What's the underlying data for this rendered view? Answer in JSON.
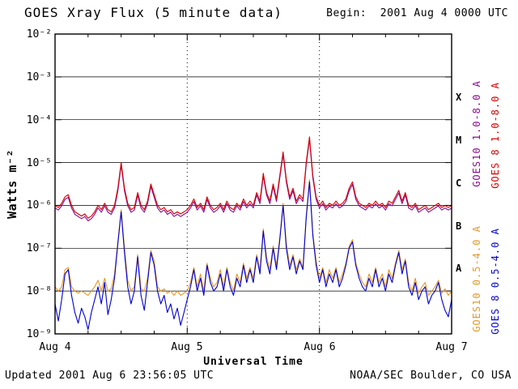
{
  "header": {
    "title": "GOES Xray Flux (5 minute data)",
    "begin": "Begin:  2001 Aug 4 0000 UTC"
  },
  "footer": {
    "updated": "Updated 2001 Aug  6 23:56:05 UTC",
    "source": "NOAA/SEC Boulder, CO USA"
  },
  "axes": {
    "y_title": "Watts m⁻²",
    "x_title": "Universal Time",
    "y_ticks": [
      "10⁻²",
      "10⁻³",
      "10⁻⁴",
      "10⁻⁵",
      "10⁻⁶",
      "10⁻⁷",
      "10⁻⁸",
      "10⁻⁹"
    ],
    "x_ticks": [
      "Aug 4",
      "Aug 5",
      "Aug 6",
      "Aug 7"
    ],
    "flare_classes": [
      "X",
      "M",
      "C",
      "B",
      "A"
    ]
  },
  "legend": {
    "goes10_long": {
      "label": "GOES10 1.0-8.0 A",
      "color": "#8a0d8f"
    },
    "goes8_long": {
      "label": "GOES 8 1.0-8.0 A",
      "color": "#d60000"
    },
    "goes10_short": {
      "label": "GOES10 0.5-4.0 A",
      "color": "#e2992c"
    },
    "goes8_short": {
      "label": "GOES 8 0.5-4.0 A",
      "color": "#0000d0"
    }
  },
  "chart_data": {
    "type": "line",
    "title": "GOES Xray Flux (5 minute data)",
    "xlabel": "Universal Time",
    "ylabel": "Watts m⁻²",
    "x_tick_labels": [
      "Aug 4",
      "Aug 5",
      "Aug 6",
      "Aug 7"
    ],
    "y_log_range": [
      -9,
      -2
    ],
    "duration_days": 3,
    "t0": 0,
    "dt": 0.025,
    "grid": "horizontal decade lines, dotted vertical day boundaries",
    "flare_class_bands": {
      "A": [
        -8,
        -7
      ],
      "B": [
        -7,
        -6
      ],
      "C": [
        -6,
        -5
      ],
      "M": [
        -5,
        -4
      ],
      "X": [
        -4,
        -3
      ]
    },
    "series": [
      {
        "id": "goes10-long",
        "name": "GOES10 1.0-8.0 A",
        "color": "#8a0d8f",
        "log10_values": [
          -6.06,
          -6.11,
          -6.01,
          -5.86,
          -5.81,
          -6.06,
          -6.21,
          -6.26,
          -6.31,
          -6.26,
          -6.36,
          -6.31,
          -6.21,
          -6.06,
          -6.16,
          -6.01,
          -6.16,
          -6.21,
          -6.06,
          -5.66,
          -5.06,
          -5.66,
          -6.01,
          -6.16,
          -6.11,
          -5.76,
          -6.06,
          -6.16,
          -5.96,
          -5.56,
          -5.81,
          -6.06,
          -6.16,
          -6.11,
          -6.21,
          -6.16,
          -6.26,
          -6.21,
          -6.26,
          -6.21,
          -6.16,
          -6.06,
          -5.91,
          -6.11,
          -6.01,
          -6.16,
          -5.86,
          -6.06,
          -6.16,
          -6.11,
          -6.01,
          -6.16,
          -5.96,
          -6.11,
          -6.16,
          -6.01,
          -6.11,
          -5.91,
          -6.06,
          -5.96,
          -6.06,
          -5.76,
          -5.96,
          -5.31,
          -5.76,
          -5.96,
          -5.56,
          -5.91,
          -5.36,
          -4.81,
          -5.46,
          -5.86,
          -5.66,
          -5.96,
          -5.81,
          -5.91,
          -5.06,
          -4.46,
          -5.36,
          -5.86,
          -6.06,
          -5.96,
          -6.11,
          -6.01,
          -6.06,
          -5.96,
          -6.06,
          -6.01,
          -5.91,
          -5.66,
          -5.51,
          -5.86,
          -6.01,
          -6.06,
          -6.11,
          -6.01,
          -6.06,
          -5.96,
          -6.06,
          -6.01,
          -6.11,
          -5.96,
          -6.01,
          -5.86,
          -5.71,
          -5.96,
          -5.76,
          -6.06,
          -6.11,
          -6.01,
          -6.16,
          -6.11,
          -6.06,
          -6.16,
          -6.11,
          -6.06,
          -6.01,
          -6.11,
          -6.06,
          -6.11,
          -6.06
        ]
      },
      {
        "id": "goes10-short",
        "name": "GOES10 0.5-4.0 A",
        "color": "#e2992c",
        "log10_values": [
          -7.9,
          -8.0,
          -7.9,
          -7.5,
          -7.45,
          -7.9,
          -8.0,
          -8.05,
          -8.0,
          -8.05,
          -8.1,
          -8.0,
          -7.9,
          -7.75,
          -8.0,
          -7.7,
          -8.0,
          -7.95,
          -7.6,
          -6.85,
          -6.1,
          -7.0,
          -7.75,
          -8.0,
          -7.9,
          -7.15,
          -7.95,
          -8.0,
          -7.7,
          -7.05,
          -7.3,
          -7.9,
          -8.0,
          -7.95,
          -8.05,
          -8.0,
          -8.1,
          -8.0,
          -8.1,
          -8.05,
          -8.0,
          -7.8,
          -7.45,
          -7.9,
          -7.6,
          -8.0,
          -7.35,
          -7.7,
          -7.9,
          -7.8,
          -7.5,
          -7.9,
          -7.45,
          -7.8,
          -8.0,
          -7.6,
          -7.8,
          -7.35,
          -7.7,
          -7.45,
          -7.7,
          -7.15,
          -7.5,
          -6.55,
          -7.2,
          -7.5,
          -6.95,
          -7.4,
          -6.75,
          -5.95,
          -6.9,
          -7.4,
          -7.15,
          -7.5,
          -7.25,
          -7.45,
          -6.25,
          -5.4,
          -6.65,
          -7.3,
          -7.7,
          -7.45,
          -7.8,
          -7.5,
          -7.7,
          -7.45,
          -7.8,
          -7.6,
          -7.35,
          -6.95,
          -6.8,
          -7.35,
          -7.6,
          -7.8,
          -7.9,
          -7.6,
          -7.8,
          -7.45,
          -7.8,
          -7.6,
          -7.9,
          -7.5,
          -7.7,
          -7.35,
          -7.05,
          -7.5,
          -7.25,
          -7.8,
          -8.0,
          -7.7,
          -8.05,
          -7.9,
          -7.8,
          -8.1,
          -8.0,
          -7.9,
          -7.75,
          -8.05,
          -7.95,
          -8.1,
          -8.0
        ]
      },
      {
        "id": "goes8-short",
        "name": "GOES 8 0.5-4.0 A",
        "color": "#0000d0",
        "log10_values": [
          -8.3,
          -8.7,
          -8.2,
          -7.6,
          -7.5,
          -8.1,
          -8.5,
          -8.75,
          -8.4,
          -8.6,
          -8.9,
          -8.5,
          -8.2,
          -7.9,
          -8.3,
          -7.8,
          -8.55,
          -8.2,
          -7.7,
          -6.9,
          -6.15,
          -7.1,
          -7.9,
          -8.3,
          -8.0,
          -7.2,
          -8.1,
          -8.45,
          -7.8,
          -7.1,
          -7.4,
          -8.0,
          -8.3,
          -8.1,
          -8.5,
          -8.3,
          -8.65,
          -8.4,
          -8.8,
          -8.5,
          -8.2,
          -7.9,
          -7.5,
          -8.0,
          -7.7,
          -8.1,
          -7.4,
          -7.8,
          -8.0,
          -7.9,
          -7.6,
          -8.0,
          -7.5,
          -7.9,
          -8.1,
          -7.7,
          -7.9,
          -7.4,
          -7.8,
          -7.5,
          -7.8,
          -7.2,
          -7.6,
          -6.6,
          -7.3,
          -7.6,
          -7.0,
          -7.5,
          -6.8,
          -6.0,
          -7.0,
          -7.5,
          -7.2,
          -7.6,
          -7.3,
          -7.5,
          -6.3,
          -5.45,
          -6.7,
          -7.4,
          -7.8,
          -7.5,
          -7.9,
          -7.6,
          -7.8,
          -7.5,
          -7.9,
          -7.7,
          -7.4,
          -7.0,
          -6.85,
          -7.4,
          -7.7,
          -7.9,
          -8.0,
          -7.7,
          -7.9,
          -7.5,
          -7.9,
          -7.7,
          -8.0,
          -7.6,
          -7.8,
          -7.4,
          -7.1,
          -7.6,
          -7.3,
          -7.9,
          -8.1,
          -7.8,
          -8.2,
          -8.0,
          -7.9,
          -8.3,
          -8.1,
          -8.0,
          -7.8,
          -8.2,
          -8.45,
          -8.6,
          -8.2
        ]
      },
      {
        "id": "goes8-long",
        "name": "GOES 8 1.0-8.0 A",
        "color": "#d60000",
        "log10_values": [
          -6.0,
          -6.05,
          -5.95,
          -5.8,
          -5.75,
          -6.0,
          -6.15,
          -6.2,
          -6.25,
          -6.2,
          -6.3,
          -6.25,
          -6.15,
          -6.0,
          -6.1,
          -5.95,
          -6.1,
          -6.15,
          -6.0,
          -5.6,
          -5.0,
          -5.6,
          -5.95,
          -6.1,
          -6.05,
          -5.7,
          -6.0,
          -6.1,
          -5.9,
          -5.5,
          -5.75,
          -6.0,
          -6.1,
          -6.05,
          -6.15,
          -6.1,
          -6.2,
          -6.15,
          -6.2,
          -6.15,
          -6.1,
          -6.0,
          -5.85,
          -6.05,
          -5.95,
          -6.1,
          -5.8,
          -6.0,
          -6.1,
          -6.05,
          -5.95,
          -6.1,
          -5.9,
          -6.05,
          -6.1,
          -5.95,
          -6.05,
          -5.85,
          -6.0,
          -5.9,
          -6.0,
          -5.7,
          -5.9,
          -5.25,
          -5.7,
          -5.9,
          -5.5,
          -5.85,
          -5.3,
          -4.75,
          -5.4,
          -5.8,
          -5.6,
          -5.9,
          -5.75,
          -5.85,
          -5.0,
          -4.4,
          -5.3,
          -5.8,
          -6.0,
          -5.9,
          -6.05,
          -5.95,
          -6.0,
          -5.9,
          -6.0,
          -5.95,
          -5.85,
          -5.6,
          -5.45,
          -5.8,
          -5.95,
          -6.0,
          -6.05,
          -5.95,
          -6.0,
          -5.9,
          -6.0,
          -5.95,
          -6.05,
          -5.9,
          -5.95,
          -5.8,
          -5.65,
          -5.9,
          -5.7,
          -6.0,
          -6.05,
          -5.95,
          -6.1,
          -6.05,
          -6.0,
          -6.1,
          -6.05,
          -6.0,
          -5.95,
          -6.05,
          -6.0,
          -6.05,
          -6.0
        ]
      }
    ]
  }
}
